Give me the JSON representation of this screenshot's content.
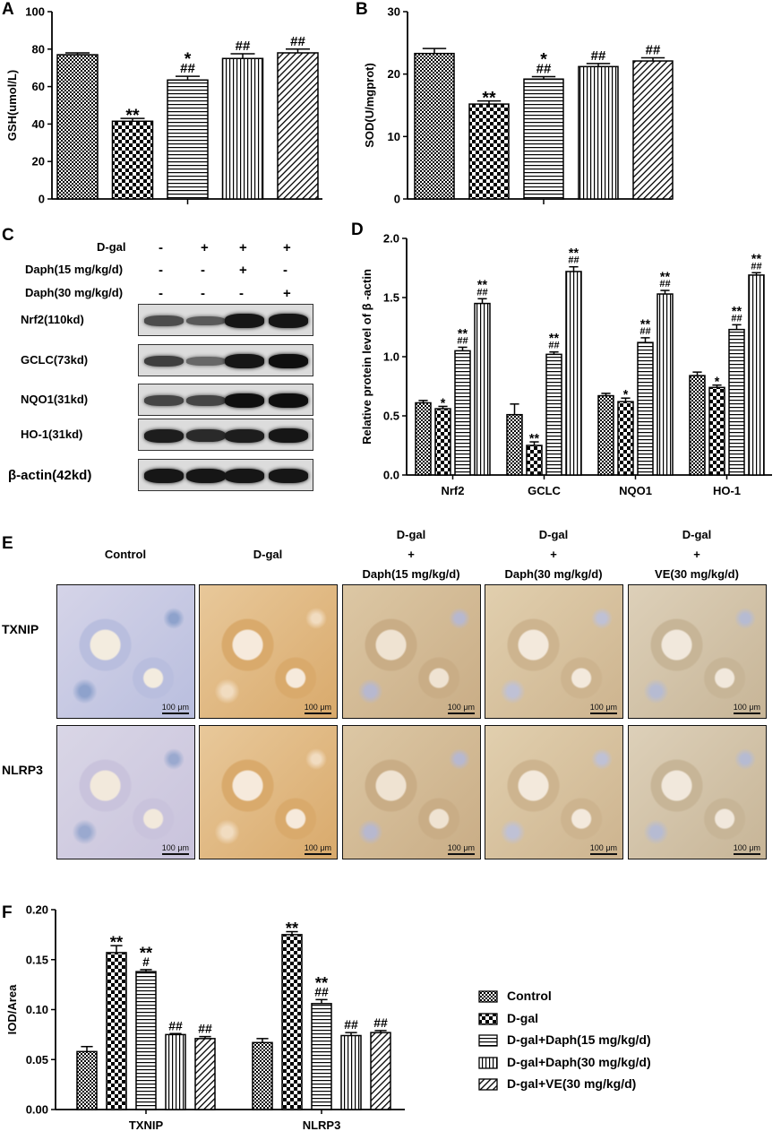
{
  "panels": {
    "A": "A",
    "B": "B",
    "C": "C",
    "D": "D",
    "E": "E",
    "F": "F"
  },
  "chart_data": [
    {
      "panel": "A",
      "type": "bar",
      "categories": [
        "Control",
        "D-gal",
        "D-gal+Daph(15 mg/kg/d)",
        "D-gal+Daph(30 mg/kg/d)",
        "D-gal+VE(30 mg/kg/d)"
      ],
      "values": [
        77,
        41.5,
        63.5,
        75,
        78
      ],
      "errors": [
        1,
        1.5,
        2,
        2.5,
        2
      ],
      "annotations": [
        "",
        "**",
        "*\n##",
        "##",
        "##"
      ],
      "ylabel": "GSH(umol/L)",
      "ylim": [
        0,
        100
      ],
      "yticks": [
        0,
        20,
        40,
        60,
        80,
        100
      ]
    },
    {
      "panel": "B",
      "type": "bar",
      "categories": [
        "Control",
        "D-gal",
        "D-gal+Daph(15 mg/kg/d)",
        "D-gal+Daph(30 mg/kg/d)",
        "D-gal+VE(30 mg/kg/d)"
      ],
      "values": [
        23.3,
        15.2,
        19.2,
        21.2,
        22.1
      ],
      "errors": [
        0.8,
        0.5,
        0.4,
        0.5,
        0.5
      ],
      "annotations": [
        "",
        "**",
        "*\n##",
        "##",
        "##"
      ],
      "ylabel": "SOD(U/mgprot)",
      "ylim": [
        0,
        30
      ],
      "yticks": [
        0,
        10,
        20,
        30
      ]
    },
    {
      "panel": "D",
      "type": "bar",
      "categories": [
        "Nrf2",
        "GCLC",
        "NQO1",
        "HO-1"
      ],
      "series": [
        {
          "name": "Control",
          "values": [
            0.61,
            0.51,
            0.67,
            0.84
          ],
          "errors": [
            0.02,
            0.09,
            0.02,
            0.03
          ]
        },
        {
          "name": "D-gal",
          "values": [
            0.56,
            0.25,
            0.62,
            0.74
          ],
          "errors": [
            0.02,
            0.03,
            0.03,
            0.02
          ]
        },
        {
          "name": "D-gal+Daph(15 mg/kg/d)",
          "values": [
            1.05,
            1.02,
            1.12,
            1.23
          ],
          "errors": [
            0.03,
            0.02,
            0.04,
            0.04
          ]
        },
        {
          "name": "D-gal+Daph(30 mg/kg/d)",
          "values": [
            1.45,
            1.72,
            1.53,
            1.69
          ],
          "errors": [
            0.04,
            0.04,
            0.03,
            0.02
          ]
        }
      ],
      "annotations": [
        [
          "",
          "*",
          "**\n##",
          "**\n##"
        ],
        [
          "",
          "**",
          "**\n##",
          "**\n##"
        ],
        [
          "",
          "*",
          "**\n##",
          "**\n##"
        ],
        [
          "",
          "*",
          "**\n##",
          "**\n##"
        ]
      ],
      "ylabel": "Relative protein level of β -actin",
      "ylim": [
        0,
        2.0
      ],
      "yticks": [
        0.0,
        0.5,
        1.0,
        1.5,
        2.0
      ]
    },
    {
      "panel": "F",
      "type": "bar",
      "categories": [
        "TXNIP",
        "NLRP3"
      ],
      "series": [
        {
          "name": "Control",
          "values": [
            0.058,
            0.067
          ],
          "errors": [
            0.005,
            0.004
          ]
        },
        {
          "name": "D-gal",
          "values": [
            0.157,
            0.175
          ],
          "errors": [
            0.007,
            0.003
          ]
        },
        {
          "name": "D-gal+Daph(15 mg/kg/d)",
          "values": [
            0.138,
            0.106
          ],
          "errors": [
            0.002,
            0.004
          ]
        },
        {
          "name": "D-gal+Daph(30 mg/kg/d)",
          "values": [
            0.075,
            0.074
          ],
          "errors": [
            0.001,
            0.003
          ]
        },
        {
          "name": "D-gal+VE(30 mg/kg/d)",
          "values": [
            0.071,
            0.077
          ],
          "errors": [
            0.002,
            0.002
          ]
        }
      ],
      "annotations": [
        [
          "",
          "**",
          "**\n#",
          "##",
          "##"
        ],
        [
          "",
          "**",
          "**\n##",
          "##",
          "##"
        ]
      ],
      "ylabel": "IOD/Area",
      "ylim": [
        0,
        0.2
      ],
      "yticks": [
        "0.00",
        "0.05",
        "0.10",
        "0.15",
        "0.20"
      ]
    }
  ],
  "western_blot": {
    "conditions": [
      {
        "label": "D-gal",
        "marks": [
          "-",
          "+",
          "+",
          "+"
        ]
      },
      {
        "label": "Daph(15 mg/kg/d)",
        "marks": [
          "-",
          "-",
          "+",
          "-"
        ]
      },
      {
        "label": "Daph(30 mg/kg/d)",
        "marks": [
          "-",
          "-",
          "-",
          "+"
        ]
      }
    ],
    "proteins": [
      "Nrf2(110kd)",
      "GCLC(73kd)",
      "NQO1(31kd)",
      "HO-1(31kd)",
      "β-actin(42kd)"
    ],
    "band_intensity": [
      [
        0.55,
        0.45,
        0.95,
        0.95
      ],
      [
        0.65,
        0.35,
        0.95,
        1.0
      ],
      [
        0.6,
        0.6,
        1.0,
        1.0
      ],
      [
        0.9,
        0.8,
        0.9,
        0.95
      ],
      [
        0.95,
        0.95,
        0.95,
        0.95
      ]
    ]
  },
  "histology": {
    "column_headers": [
      "Control",
      "D-gal",
      "D-gal\n+\nDaph(15 mg/kg/d)",
      "D-gal\n+\nDaph(30 mg/kg/d)",
      "D-gal\n+\nVE(30 mg/kg/d)"
    ],
    "row_labels": [
      "TXNIP",
      "NLRP3"
    ],
    "scale_bar": "100 μm"
  },
  "legend": [
    {
      "label": "Control",
      "pattern": "checker-small"
    },
    {
      "label": "D-gal",
      "pattern": "checker-large"
    },
    {
      "label": "D-gal+Daph(15 mg/kg/d)",
      "pattern": "hlines"
    },
    {
      "label": "D-gal+Daph(30 mg/kg/d)",
      "pattern": "vlines"
    },
    {
      "label": "D-gal+VE(30 mg/kg/d)",
      "pattern": "diag"
    }
  ]
}
